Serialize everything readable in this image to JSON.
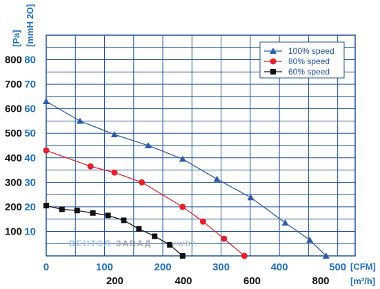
{
  "chart_data": {
    "type": "line",
    "x_unit_primary": "[CFM]",
    "x_unit_secondary": "[m³/h]",
    "y_unit_primary": "[Pa]",
    "y_unit_secondary": "[mmH 2O]",
    "x_ticks_cfm": [
      "0",
      "100",
      "200",
      "300",
      "400",
      "500"
    ],
    "x_ticks_m3h": [
      "200",
      "400",
      "600",
      "800"
    ],
    "y_ticks_pa": [
      "100",
      "200",
      "300",
      "400",
      "500",
      "600",
      "700",
      "800"
    ],
    "y_ticks_mmh2o": [
      "10",
      "20",
      "30",
      "40",
      "50",
      "60",
      "70",
      "80"
    ],
    "xlim": [
      0,
      530
    ],
    "ylim": [
      0,
      900
    ],
    "grid": true,
    "legend_position": "top-right",
    "series": [
      {
        "name": "100%  speed",
        "color": "#2d5bab",
        "marker": "triangle",
        "x": [
          0,
          58,
          117,
          175,
          234,
          293,
          351,
          410,
          452,
          480
        ],
        "y": [
          630,
          550,
          495,
          450,
          395,
          313,
          238,
          135,
          65,
          0
        ]
      },
      {
        "name": "80%  speed",
        "color": "#e8202a",
        "marker": "circle",
        "x": [
          0,
          76,
          117,
          164,
          234,
          269,
          305,
          340
        ],
        "y": [
          430,
          365,
          340,
          300,
          200,
          140,
          70,
          0
        ]
      },
      {
        "name": "60%  speed",
        "color": "#111111",
        "marker": "square",
        "x": [
          0,
          27,
          53,
          80,
          106,
          133,
          159,
          186,
          212,
          234
        ],
        "y": [
          205,
          190,
          185,
          175,
          165,
          145,
          110,
          80,
          45,
          0
        ]
      }
    ]
  },
  "watermark": {
    "part1": "ВЕНТЭЛ",
    "part2": "ЗАПАД",
    "part3": "V-W.BY"
  }
}
